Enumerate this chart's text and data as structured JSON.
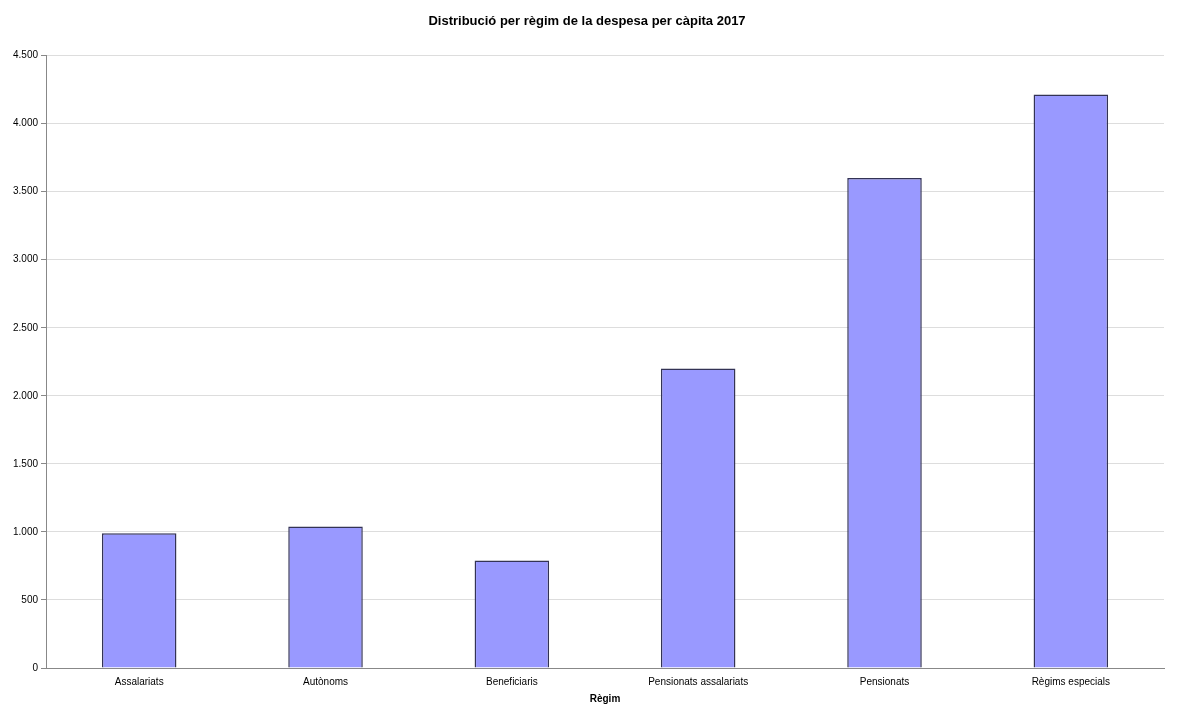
{
  "chart_data": {
    "type": "bar",
    "title": "Distribució per règim de la despesa per càpita 2017",
    "xlabel": "Règim",
    "categories": [
      "Assalariats",
      "Autònoms",
      "Beneficiaris",
      "Pensionats assalariats",
      "Pensionats",
      "Règims especials"
    ],
    "values": [
      990,
      1040,
      790,
      2200,
      3600,
      4215
    ],
    "color": "#9999ff",
    "ylim": [
      0,
      4500
    ],
    "yticks": [
      0,
      500,
      {
        "value": 1000,
        "label": "1.000"
      },
      {
        "value": 1500,
        "label": "1.500"
      },
      {
        "value": 2000,
        "label": "2.000"
      },
      {
        "value": 2500,
        "label": "2.500"
      },
      {
        "value": 3000,
        "label": "3.000"
      },
      {
        "value": 3500,
        "label": "3.500"
      },
      {
        "value": 4000,
        "label": "4.000"
      },
      {
        "value": 4500,
        "label": "4.500"
      }
    ],
    "grid": "y",
    "legend": false
  }
}
